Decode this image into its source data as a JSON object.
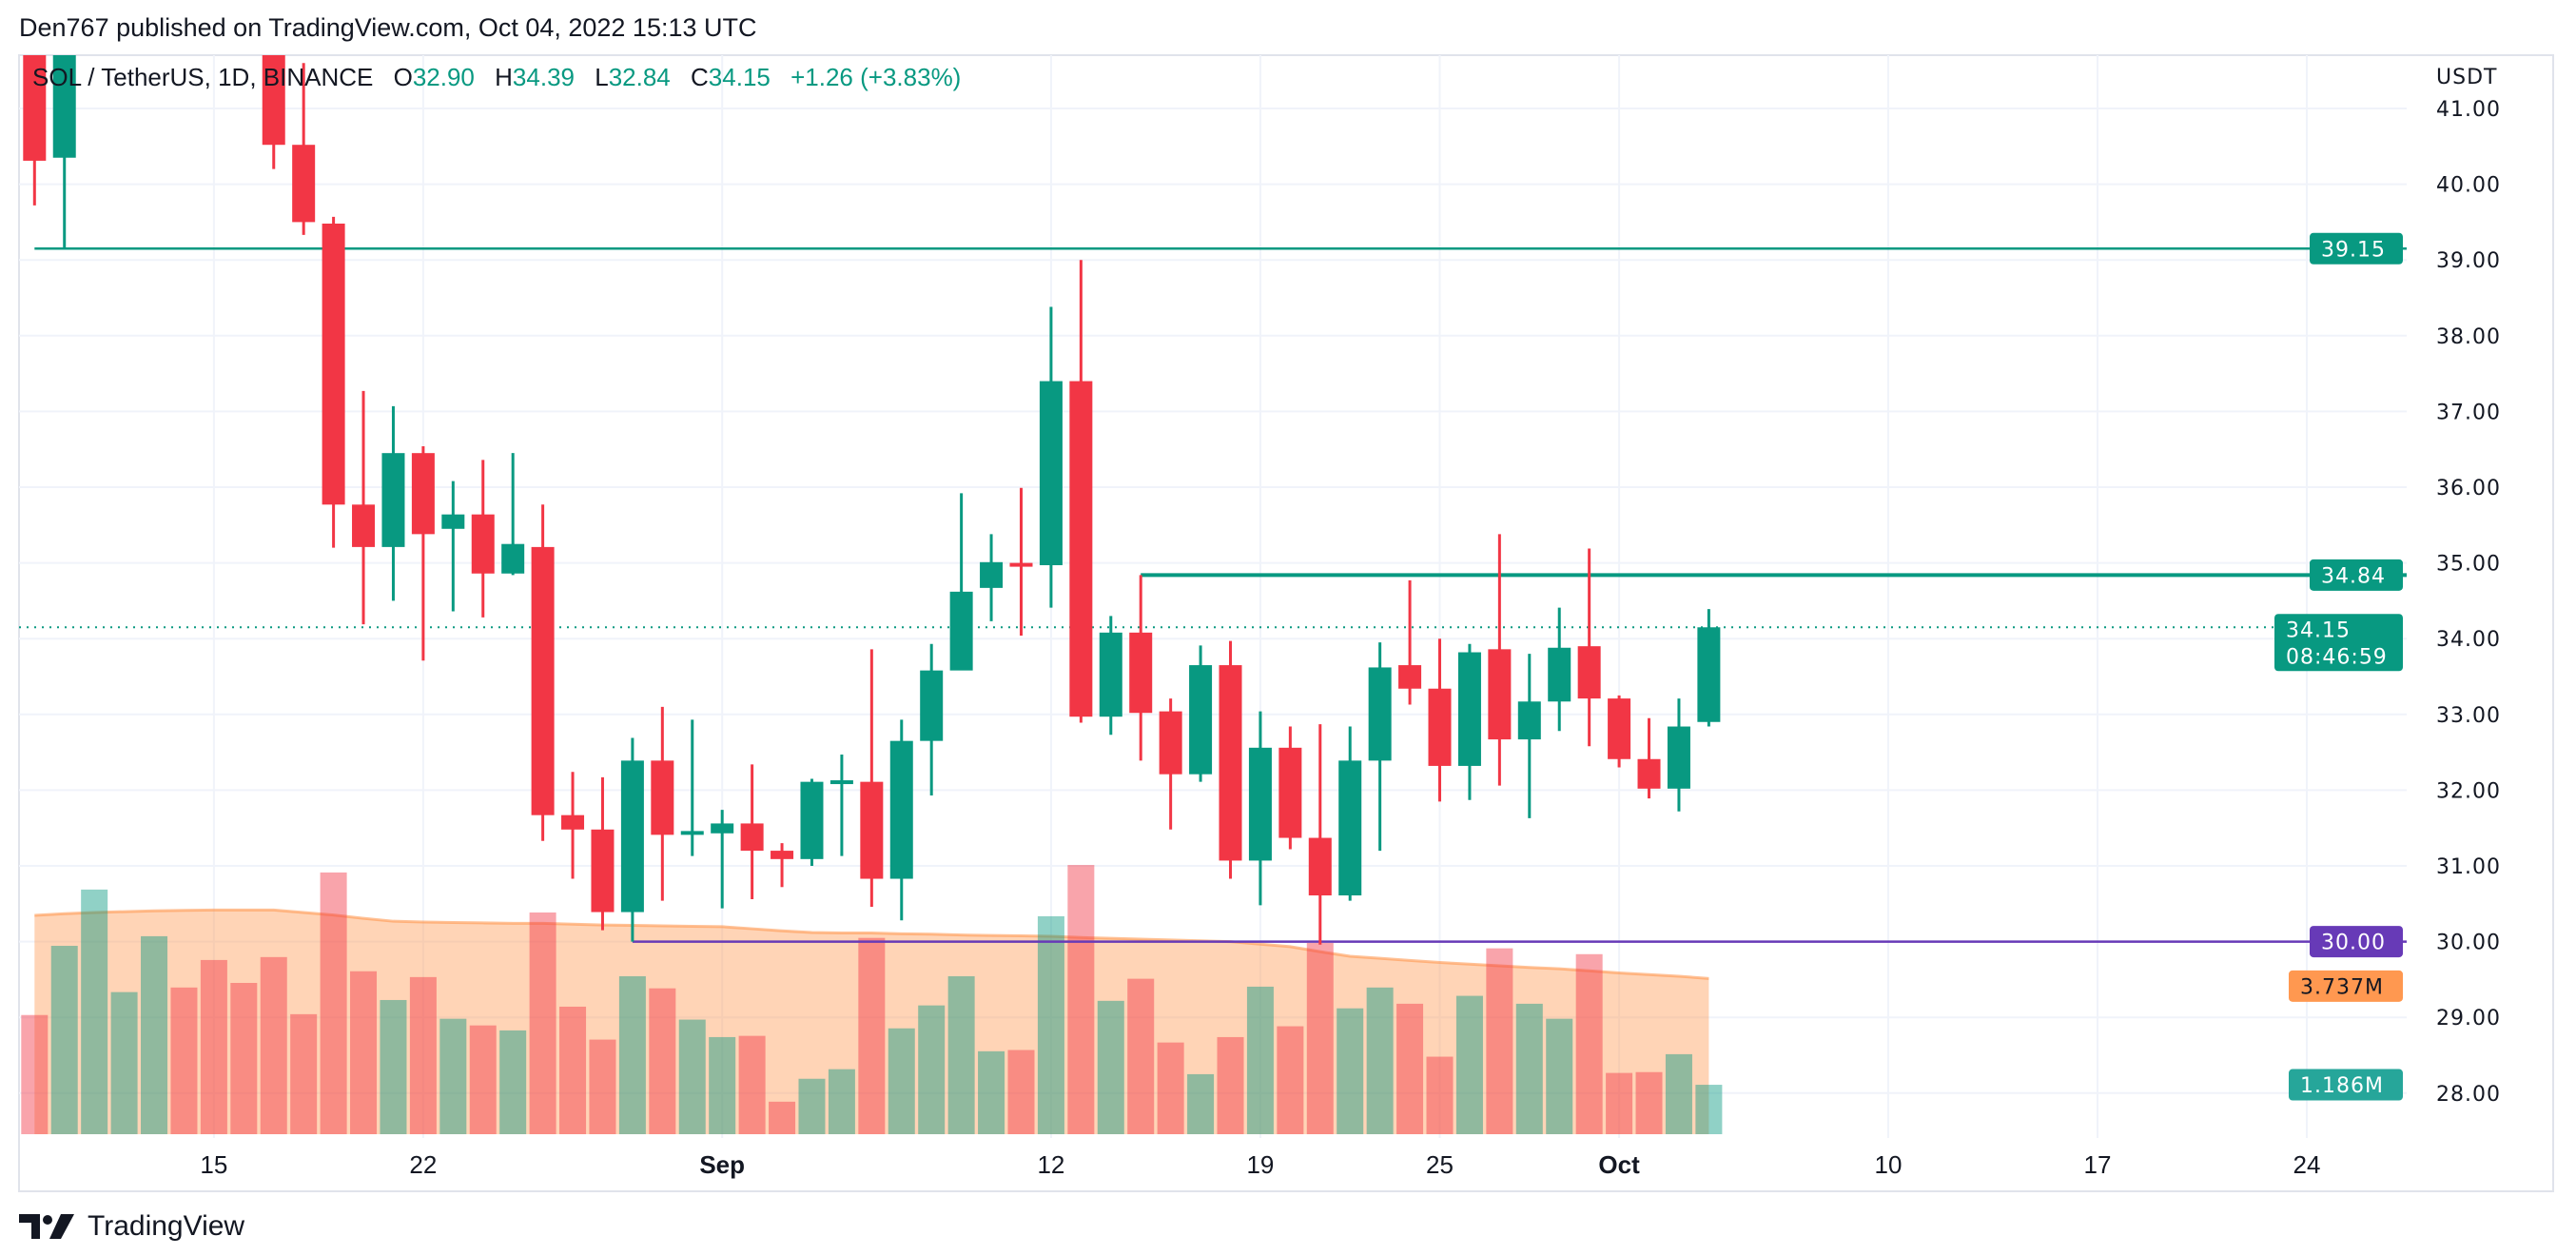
{
  "header": {
    "published": "Den767 published on TradingView.com, Oct 04, 2022 15:13 UTC"
  },
  "legend": {
    "symbol": "SOL / TetherUS, 1D, BINANCE",
    "o_label": "O",
    "o": "32.90",
    "h_label": "H",
    "h": "34.39",
    "l_label": "L",
    "l": "32.84",
    "c_label": "C",
    "c": "34.15",
    "change": "+1.26 (+3.83%)"
  },
  "footer": {
    "brand": "TradingView"
  },
  "colors": {
    "up": "#089981",
    "down": "#F23645",
    "support": "#673AB7",
    "volume_ma": "#FF9850",
    "volume_tag": "#26A69A"
  },
  "chart_data": {
    "type": "candlestick",
    "currency_label": "USDT",
    "ylim": [
      27.6,
      41.5
    ],
    "y_ticks": [
      "28.00",
      "29.00",
      "30.00",
      "31.00",
      "32.00",
      "33.00",
      "34.00",
      "35.00",
      "36.00",
      "37.00",
      "38.00",
      "39.00",
      "40.00",
      "41.00"
    ],
    "grid": true,
    "x_ticks": [
      {
        "label": "15",
        "date": "2022-08-15"
      },
      {
        "label": "22",
        "date": "2022-08-22"
      },
      {
        "label": "Sep",
        "date": "2022-09-01"
      },
      {
        "label": "12",
        "date": "2022-09-12"
      },
      {
        "label": "19",
        "date": "2022-09-19"
      },
      {
        "label": "25",
        "date": "2022-09-25"
      },
      {
        "label": "Oct",
        "date": "2022-10-01"
      },
      {
        "label": "10",
        "date": "2022-10-10"
      },
      {
        "label": "17",
        "date": "2022-10-17"
      },
      {
        "label": "24",
        "date": "2022-10-24"
      }
    ],
    "first_date": "2022-08-09",
    "candles": [
      [
        42.2,
        42.8,
        39.72,
        40.31
      ],
      [
        40.35,
        42.9,
        39.15,
        42.4
      ],
      null,
      null,
      null,
      null,
      null,
      null,
      [
        41.8,
        42.5,
        40.2,
        40.52
      ],
      [
        40.52,
        41.6,
        39.33,
        39.5
      ],
      [
        39.48,
        39.57,
        35.2,
        35.77
      ],
      [
        35.77,
        37.27,
        34.19,
        35.21
      ],
      [
        35.21,
        37.07,
        34.5,
        36.45
      ],
      [
        36.45,
        36.54,
        33.71,
        35.38
      ],
      [
        35.45,
        36.08,
        34.36,
        35.64
      ],
      [
        35.64,
        36.36,
        34.28,
        34.86
      ],
      [
        34.86,
        36.45,
        34.84,
        35.25
      ],
      [
        35.21,
        35.77,
        31.33,
        31.67
      ],
      [
        31.67,
        32.24,
        30.83,
        31.48
      ],
      [
        31.48,
        32.17,
        30.15,
        30.39
      ],
      [
        30.39,
        32.69,
        30.0,
        32.39
      ],
      [
        32.39,
        33.1,
        30.54,
        31.41
      ],
      [
        31.41,
        32.93,
        31.13,
        31.46
      ],
      [
        31.43,
        31.74,
        30.44,
        31.56
      ],
      [
        31.56,
        32.34,
        30.56,
        31.2
      ],
      [
        31.2,
        31.3,
        30.72,
        31.09
      ],
      [
        31.09,
        32.15,
        31.0,
        32.11
      ],
      [
        32.12,
        32.47,
        31.13,
        32.13
      ],
      [
        32.11,
        33.86,
        30.46,
        30.83
      ],
      [
        30.83,
        32.93,
        30.28,
        32.65
      ],
      [
        32.65,
        33.93,
        31.93,
        33.58
      ],
      [
        33.58,
        35.92,
        34.23,
        34.62
      ],
      [
        34.67,
        35.38,
        34.23,
        35.01
      ],
      [
        35.0,
        35.99,
        34.04,
        34.95
      ],
      [
        34.97,
        38.38,
        34.41,
        37.4
      ],
      [
        37.4,
        39.0,
        32.89,
        32.97
      ],
      [
        32.97,
        34.3,
        32.73,
        34.08
      ],
      [
        34.08,
        34.84,
        32.39,
        33.02
      ],
      [
        33.04,
        33.21,
        31.48,
        32.21
      ],
      [
        32.21,
        33.91,
        32.11,
        33.65
      ],
      [
        33.65,
        33.97,
        30.83,
        31.07
      ],
      [
        31.07,
        33.04,
        30.48,
        32.56
      ],
      [
        32.56,
        32.84,
        31.22,
        31.37
      ],
      [
        31.37,
        32.87,
        29.96,
        30.61
      ],
      [
        30.61,
        32.84,
        30.54,
        32.39
      ],
      [
        32.39,
        33.95,
        31.2,
        33.62
      ],
      [
        33.65,
        34.77,
        33.13,
        33.34
      ],
      [
        33.34,
        34.0,
        31.85,
        32.32
      ],
      [
        32.32,
        33.93,
        31.87,
        33.82
      ],
      [
        33.86,
        35.38,
        32.06,
        32.67
      ],
      [
        32.67,
        33.8,
        31.63,
        33.17
      ],
      [
        33.17,
        34.41,
        32.78,
        33.88
      ],
      [
        33.9,
        35.19,
        32.58,
        33.21
      ],
      [
        33.21,
        33.25,
        32.3,
        32.41
      ],
      [
        32.41,
        32.95,
        31.89,
        32.02
      ],
      [
        32.02,
        33.21,
        31.72,
        32.84
      ],
      [
        32.9,
        34.39,
        32.84,
        34.15
      ]
    ],
    "volume_unit": "M",
    "volume": [
      2.86,
      4.52,
      5.87,
      3.41,
      4.75,
      3.52,
      4.18,
      3.63,
      4.25,
      2.88,
      6.28,
      3.91,
      3.22,
      3.77,
      2.77,
      2.61,
      2.49,
      5.32,
      3.06,
      2.27,
      3.79,
      3.5,
      2.75,
      2.33,
      2.36,
      0.78,
      1.33,
      1.56,
      4.71,
      2.54,
      3.09,
      3.79,
      1.99,
      2.02,
      5.23,
      6.46,
      3.2,
      3.73,
      2.2,
      1.44,
      2.33,
      3.54,
      2.59,
      4.59,
      3.02,
      3.52,
      3.13,
      1.86,
      3.32,
      4.46,
      3.13,
      2.77,
      4.32,
      1.47,
      1.49,
      1.92,
      1.186
    ],
    "volume_up": [
      false,
      true,
      true,
      true,
      true,
      false,
      false,
      false,
      false,
      false,
      false,
      false,
      true,
      false,
      true,
      false,
      true,
      false,
      false,
      false,
      true,
      false,
      true,
      true,
      false,
      false,
      true,
      true,
      false,
      true,
      true,
      true,
      true,
      false,
      true,
      false,
      true,
      false,
      false,
      true,
      false,
      true,
      false,
      false,
      true,
      true,
      false,
      false,
      true,
      false,
      true,
      true,
      false,
      false,
      false,
      true,
      true
    ],
    "volume_ma": [
      5.25,
      5.29,
      5.32,
      5.34,
      5.36,
      5.37,
      5.38,
      5.38,
      5.38,
      5.32,
      5.26,
      5.18,
      5.11,
      5.09,
      5.08,
      5.07,
      5.06,
      5.06,
      5.04,
      5.02,
      5.01,
      5.0,
      4.99,
      4.98,
      4.93,
      4.88,
      4.84,
      4.83,
      4.83,
      4.81,
      4.8,
      4.78,
      4.77,
      4.76,
      4.75,
      4.72,
      4.7,
      4.68,
      4.66,
      4.64,
      4.62,
      4.56,
      4.5,
      4.38,
      4.27,
      4.22,
      4.17,
      4.12,
      4.08,
      4.04,
      4.0,
      3.97,
      3.92,
      3.87,
      3.83,
      3.79,
      3.737
    ],
    "levels": [
      {
        "price": 39.15,
        "label": "39.15",
        "color": "#089981",
        "from": "2022-08-09"
      },
      {
        "price": 34.84,
        "label": "34.84",
        "color": "#089981",
        "from": "2022-09-15"
      },
      {
        "price": 30.0,
        "label": "30.00",
        "color": "#673AB7",
        "from": "2022-08-29"
      }
    ],
    "last_price": {
      "price": 34.15,
      "label": "34.15",
      "countdown": "08:46:59"
    },
    "volume_ma_tag": {
      "value": 3.737,
      "label": "3.737M"
    },
    "volume_tag": {
      "value": 1.186,
      "label": "1.186M"
    }
  }
}
